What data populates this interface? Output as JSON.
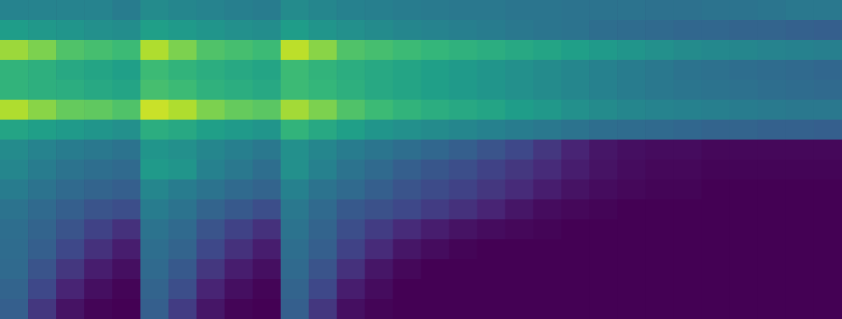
{
  "chart_data": {
    "type": "heatmap",
    "color": "viridis",
    "tick_labels": false,
    "zlim": [
      0,
      10
    ],
    "cells": [
      [
        4.5,
        4.5,
        4.5,
        4.5,
        4.2,
        4.8,
        4.6,
        4.5,
        4.3,
        4.2,
        4.8,
        4.6,
        4.4,
        4.3,
        4.2,
        4.1,
        4,
        4,
        3.9,
        3.9,
        3.8,
        3.8,
        3.8,
        3.7,
        3.7,
        3.8,
        3.8,
        3.9,
        4,
        4
      ],
      [
        5.5,
        5.3,
        5.2,
        5,
        4.9,
        5.6,
        5.4,
        5.2,
        5,
        4.9,
        5.5,
        5.2,
        5,
        4.8,
        4.6,
        4.5,
        4.3,
        4.2,
        4,
        3.9,
        3.8,
        3.6,
        3.5,
        3.4,
        3.3,
        3.3,
        3.2,
        3.2,
        3.1,
        3
      ],
      [
        8.5,
        8,
        7.2,
        7,
        6.8,
        8.8,
        8,
        7.2,
        7,
        6.8,
        9,
        8.2,
        7.2,
        7,
        6.8,
        6.6,
        6.4,
        6.2,
        6,
        5.8,
        5.6,
        5.4,
        5.2,
        5,
        4.8,
        4.7,
        4.6,
        4.5,
        4.4,
        4.3
      ],
      [
        6.5,
        6.3,
        6,
        5.8,
        5.6,
        6.8,
        6.5,
        6.2,
        6,
        5.8,
        6.8,
        6.5,
        6.2,
        6,
        5.8,
        5.6,
        5.4,
        5.2,
        5,
        4.8,
        4.6,
        4.4,
        4.2,
        4,
        3.8,
        3.7,
        3.6,
        3.5,
        3.4,
        3.3
      ],
      [
        6.5,
        6.3,
        6.2,
        6,
        5.8,
        7,
        6.8,
        6.4,
        6.2,
        6,
        6.8,
        6.6,
        6.3,
        6,
        5.8,
        5.6,
        5.4,
        5.2,
        5,
        4.8,
        4.6,
        4.4,
        4.2,
        4,
        3.9,
        3.8,
        3.7,
        3.6,
        3.5,
        3.4
      ],
      [
        8.8,
        8.2,
        7.6,
        7.5,
        7.2,
        9.2,
        8.8,
        8,
        7.6,
        7.4,
        8.6,
        8,
        7.2,
        6.8,
        6.5,
        6.2,
        6,
        5.8,
        5.5,
        5.3,
        5,
        4.8,
        4.6,
        4.5,
        4.4,
        4.3,
        4.2,
        4.1,
        4,
        4
      ],
      [
        5.8,
        5.6,
        5.4,
        5.2,
        5,
        6.2,
        6,
        5.6,
        5.4,
        5.2,
        6.5,
        6,
        5.6,
        5.2,
        5,
        4.8,
        4.6,
        4.4,
        4.2,
        4,
        3.8,
        3.6,
        3.5,
        3.4,
        3.3,
        3.2,
        3.2,
        3.1,
        3.1,
        3
      ],
      [
        4.8,
        4.5,
        4.2,
        4,
        3.8,
        5.2,
        5,
        4.6,
        4.3,
        4,
        5,
        4.6,
        4.2,
        3.9,
        3.6,
        3.3,
        3,
        2.6,
        2.2,
        1.6,
        1,
        0.6,
        0.4,
        0.3,
        0.3,
        0.2,
        0.2,
        0.2,
        0.2,
        0.2
      ],
      [
        4.6,
        4.2,
        3.8,
        3.6,
        3.4,
        5.4,
        5.2,
        4.4,
        4,
        3.6,
        5,
        4.4,
        3.8,
        3.4,
        3,
        2.7,
        2.4,
        2,
        1.6,
        1.2,
        0.8,
        0.5,
        0.3,
        0.2,
        0.2,
        0.1,
        0.1,
        0.1,
        0.1,
        0.1
      ],
      [
        4.2,
        3.8,
        3.4,
        3.2,
        3,
        4.6,
        4.2,
        3.8,
        3.4,
        3.2,
        4.4,
        3.8,
        3.4,
        3,
        2.6,
        2.3,
        2,
        1.6,
        1.2,
        0.8,
        0.5,
        0.3,
        0.2,
        0.1,
        0.1,
        0,
        0,
        0,
        0,
        0
      ],
      [
        3.8,
        3.4,
        3,
        2.6,
        2.4,
        4.2,
        3.8,
        3.2,
        2.8,
        2.4,
        4,
        3.4,
        2.8,
        2.5,
        2.2,
        1.8,
        1.4,
        1,
        0.6,
        0.3,
        0.2,
        0.1,
        0,
        0,
        0,
        0,
        0,
        0,
        0,
        0
      ],
      [
        3.6,
        3.2,
        2.6,
        2,
        1.4,
        3.8,
        3.4,
        2.6,
        2,
        1.4,
        3.8,
        3.2,
        2.4,
        1.8,
        1.2,
        0.8,
        0.5,
        0.3,
        0.2,
        0.1,
        0,
        0,
        0,
        0,
        0,
        0,
        0,
        0,
        0,
        0
      ],
      [
        3.5,
        3,
        2.2,
        1.4,
        0.8,
        3.6,
        3.2,
        2.2,
        1.4,
        0.8,
        3.6,
        3,
        2,
        1.2,
        0.6,
        0.3,
        0.1,
        0,
        0,
        0,
        0,
        0,
        0,
        0,
        0,
        0,
        0,
        0,
        0,
        0
      ],
      [
        3.4,
        2.6,
        1.6,
        0.8,
        0.4,
        3.4,
        2.8,
        1.6,
        0.8,
        0.4,
        3.4,
        2.6,
        1.4,
        0.6,
        0.2,
        0,
        0,
        0,
        0,
        0,
        0,
        0,
        0,
        0,
        0,
        0,
        0,
        0,
        0,
        0
      ],
      [
        3.2,
        2.2,
        1,
        0.4,
        0.1,
        3.2,
        2.4,
        1,
        0.4,
        0.1,
        3.2,
        2.2,
        0.8,
        0.3,
        0,
        0,
        0,
        0,
        0,
        0,
        0,
        0,
        0,
        0,
        0,
        0,
        0,
        0,
        0,
        0
      ],
      [
        3,
        1.6,
        0.5,
        0.1,
        0,
        3,
        1.8,
        0.6,
        0.1,
        0,
        3,
        1.6,
        0.4,
        0.1,
        0,
        0,
        0,
        0,
        0,
        0,
        0,
        0,
        0,
        0,
        0,
        0,
        0,
        0,
        0,
        0
      ]
    ]
  }
}
